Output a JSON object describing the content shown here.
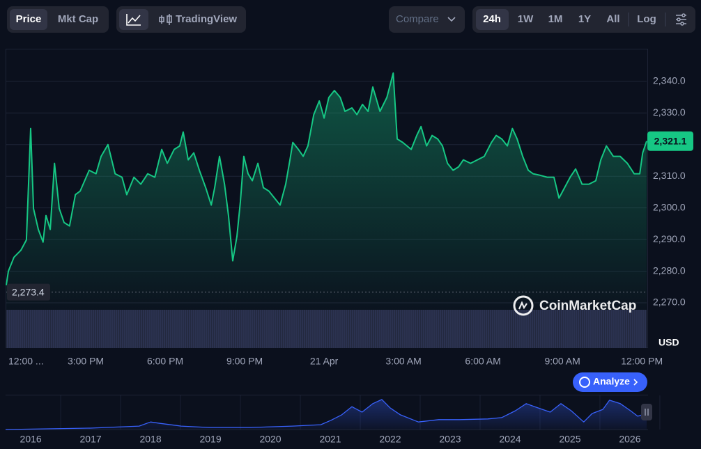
{
  "toolbar": {
    "tabs": [
      "Price",
      "Mkt Cap"
    ],
    "tradingview": "TradingView",
    "compare": "Compare",
    "ranges": [
      "24h",
      "1W",
      "1M",
      "1Y",
      "All"
    ],
    "log": "Log"
  },
  "watermark": "CoinMarketCap",
  "analyze": "Analyze",
  "chart_data": [
    {
      "type": "line",
      "fill": true,
      "color": "#16c784",
      "currency": "USD",
      "grid": true,
      "x": [
        0,
        0.08,
        0.29,
        0.55,
        0.76,
        0.92,
        1.03,
        1.21,
        1.39,
        1.5,
        1.66,
        1.82,
        2.0,
        2.18,
        2.39,
        2.61,
        2.79,
        3.13,
        3.39,
        3.58,
        3.84,
        4.11,
        4.37,
        4.55,
        4.82,
        5.08,
        5.34,
        5.61,
        5.87,
        6.08,
        6.34,
        6.55,
        6.68,
        6.87,
        7.08,
        7.29,
        7.53,
        7.74,
        7.87,
        8.05,
        8.24,
        8.39,
        8.55,
        8.71,
        8.84,
        8.97,
        9.13,
        9.29,
        9.5,
        9.71,
        9.92,
        10.13,
        10.34,
        10.55,
        10.71,
        10.82,
        11.03,
        11.21,
        11.39,
        11.61,
        11.82,
        12.0,
        12.18,
        12.39,
        12.61,
        12.79,
        13.05,
        13.24,
        13.45,
        13.66,
        13.84,
        14.11,
        14.37,
        14.61,
        14.76,
        14.97,
        15.29,
        15.5,
        15.66,
        15.87,
        16.08,
        16.29,
        16.47,
        16.66,
        16.87,
        17.08,
        17.26,
        17.53,
        17.79,
        18.05,
        18.32,
        18.5,
        18.71,
        18.92,
        19.11,
        19.29,
        19.5,
        19.71,
        19.89,
        20.16,
        20.42,
        20.68,
        20.87,
        21.08,
        21.29,
        21.5,
        21.74,
        22.0,
        22.26,
        22.45,
        22.66,
        22.92,
        23.18,
        23.45,
        23.71,
        23.92,
        24.03,
        24.18
      ],
      "values": [
        2275.6,
        2280.0,
        2284.4,
        2286.6,
        2289.9,
        2325.1,
        2299.8,
        2293.2,
        2289.2,
        2297.6,
        2293.2,
        2314.1,
        2299.8,
        2295.4,
        2294.3,
        2304.2,
        2305.3,
        2311.9,
        2310.8,
        2316.3,
        2320.0,
        2310.8,
        2309.7,
        2304.2,
        2309.7,
        2307.5,
        2310.8,
        2309.7,
        2318.5,
        2314.1,
        2318.5,
        2319.6,
        2324.0,
        2315.2,
        2317.4,
        2311.9,
        2306.4,
        2300.9,
        2306.4,
        2316.3,
        2307.5,
        2297.6,
        2283.3,
        2291.0,
        2302.0,
        2316.3,
        2310.8,
        2308.6,
        2314.1,
        2306.4,
        2305.3,
        2303.1,
        2300.9,
        2307.5,
        2315.2,
        2320.7,
        2318.5,
        2316.3,
        2319.6,
        2329.5,
        2333.8,
        2328.4,
        2334.9,
        2337.1,
        2334.9,
        2330.5,
        2331.6,
        2329.5,
        2332.7,
        2330.5,
        2338.2,
        2330.5,
        2334.9,
        2342.6,
        2321.8,
        2320.7,
        2318.5,
        2322.9,
        2325.7,
        2319.6,
        2322.9,
        2321.8,
        2319.6,
        2314.1,
        2311.9,
        2313.0,
        2315.2,
        2314.1,
        2315.2,
        2316.3,
        2320.7,
        2322.9,
        2321.8,
        2319.6,
        2325.1,
        2321.8,
        2316.3,
        2311.9,
        2310.8,
        2310.3,
        2309.7,
        2309.7,
        2303.1,
        2306.4,
        2309.7,
        2312.3,
        2307.5,
        2307.5,
        2308.6,
        2315.2,
        2319.6,
        2316.3,
        2316.3,
        2314.1,
        2310.8,
        2310.8,
        2317.4,
        2321.1
      ],
      "last_price": {
        "value": 2321.1,
        "label": "2,321.1"
      },
      "open_price": {
        "value": 2273.4,
        "label": "2,273.4"
      },
      "xlim": [
        0,
        24.18
      ],
      "ylim": [
        2260,
        2350.3
      ],
      "xticks": [
        {
          "value": 0,
          "label": "12:00 ..."
        },
        {
          "value": 3,
          "label": "3:00 PM"
        },
        {
          "value": 6,
          "label": "6:00 PM"
        },
        {
          "value": 9,
          "label": "9:00 PM"
        },
        {
          "value": 12,
          "label": "21 Apr"
        },
        {
          "value": 15,
          "label": "3:00 AM"
        },
        {
          "value": 18,
          "label": "6:00 AM"
        },
        {
          "value": 21,
          "label": "9:00 AM"
        },
        {
          "value": 24,
          "label": "12:00 PM"
        }
      ],
      "yticks": [
        {
          "value": 2270,
          "label": "2,270.0"
        },
        {
          "value": 2280,
          "label": "2,280.0"
        },
        {
          "value": 2290,
          "label": "2,290.0"
        },
        {
          "value": 2300,
          "label": "2,300.0"
        },
        {
          "value": 2310,
          "label": "2,310.0"
        },
        {
          "value": 2320,
          "label": "2,320.0"
        },
        {
          "value": 2330,
          "label": "2,330.0"
        },
        {
          "value": 2340,
          "label": "2,340.0"
        }
      ]
    },
    {
      "type": "line",
      "fill": true,
      "color": "#3861fb",
      "grid": true,
      "x": [
        2015.58,
        2017.0,
        2017.81,
        2018.0,
        2018.16,
        2018.51,
        2018.98,
        2019.67,
        2020.37,
        2020.84,
        2021.01,
        2021.19,
        2021.36,
        2021.53,
        2021.71,
        2021.86,
        2022.0,
        2022.17,
        2022.47,
        2022.81,
        2023.16,
        2023.63,
        2023.86,
        2024.09,
        2024.27,
        2024.44,
        2024.67,
        2024.85,
        2025.02,
        2025.23,
        2025.37,
        2025.55,
        2025.66,
        2025.84,
        2026.01,
        2026.13,
        2026.28
      ],
      "values": [
        0,
        4,
        10,
        22,
        18,
        10,
        6,
        6,
        10,
        14,
        27,
        43,
        67,
        51,
        76,
        88,
        63,
        43,
        22,
        29,
        29,
        31,
        35,
        55,
        76,
        65,
        51,
        76,
        55,
        22,
        47,
        59,
        86,
        76,
        55,
        39,
        47
      ],
      "xlim": [
        2015.58,
        2026.28
      ],
      "ylim": [
        0,
        100
      ],
      "xticks": [
        2016,
        2017,
        2018,
        2019,
        2020,
        2021,
        2022,
        2023,
        2024,
        2025,
        2026
      ]
    }
  ]
}
